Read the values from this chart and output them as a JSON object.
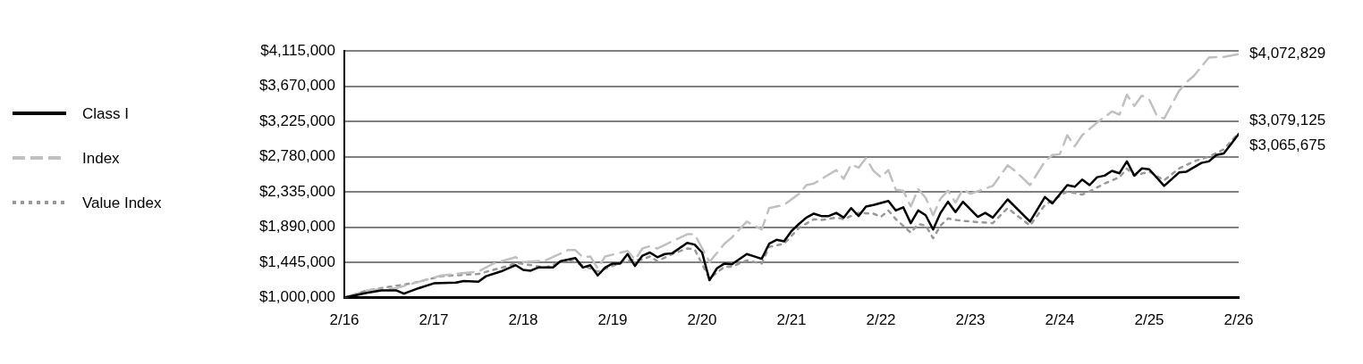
{
  "chart_data": {
    "type": "line",
    "ylim": [
      1000000,
      4115000
    ],
    "yticks": [
      {
        "value": 1000000,
        "label": "$1,000,000"
      },
      {
        "value": 1445000,
        "label": "$1,445,000"
      },
      {
        "value": 1890000,
        "label": "$1,890,000"
      },
      {
        "value": 2335000,
        "label": "$2,335,000"
      },
      {
        "value": 2780000,
        "label": "$2,780,000"
      },
      {
        "value": 3225000,
        "label": "$3,225,000"
      },
      {
        "value": 3670000,
        "label": "$3,670,000"
      },
      {
        "value": 4115000,
        "label": "$4,115,000"
      }
    ],
    "xlim": [
      "2016-02",
      "2026-02"
    ],
    "xticks": [
      {
        "value": "2016-02",
        "label": "2/16"
      },
      {
        "value": "2017-02",
        "label": "2/17"
      },
      {
        "value": "2018-02",
        "label": "2/18"
      },
      {
        "value": "2019-02",
        "label": "2/19"
      },
      {
        "value": "2020-02",
        "label": "2/20"
      },
      {
        "value": "2021-02",
        "label": "2/21"
      },
      {
        "value": "2022-02",
        "label": "2/22"
      },
      {
        "value": "2023-02",
        "label": "2/23"
      },
      {
        "value": "2024-02",
        "label": "2/24"
      },
      {
        "value": "2025-02",
        "label": "2/25"
      },
      {
        "value": "2026-02",
        "label": "2/26"
      }
    ],
    "grid": "y",
    "legend": "left",
    "marker": "none",
    "series": [
      {
        "name": "Class I",
        "color": "#000000",
        "line_style": "solid",
        "x": [
          "2016-02",
          "2016-05",
          "2016-07",
          "2016-09",
          "2016-10",
          "2016-12",
          "2017-02",
          "2017-05",
          "2017-06",
          "2017-08",
          "2017-09",
          "2017-11",
          "2018-01",
          "2018-02",
          "2018-03",
          "2018-04",
          "2018-06",
          "2018-07",
          "2018-09",
          "2018-10",
          "2018-11",
          "2018-12",
          "2019-01",
          "2019-02",
          "2019-03",
          "2019-04",
          "2019-05",
          "2019-06",
          "2019-07",
          "2019-08",
          "2019-09",
          "2019-10",
          "2019-12",
          "2020-01",
          "2020-02",
          "2020-03",
          "2020-04",
          "2020-05",
          "2020-06",
          "2020-08",
          "2020-09",
          "2020-10",
          "2020-11",
          "2020-12",
          "2021-01",
          "2021-02",
          "2021-03",
          "2021-04",
          "2021-05",
          "2021-06",
          "2021-07",
          "2021-08",
          "2021-09",
          "2021-10",
          "2021-11",
          "2021-12",
          "2022-01",
          "2022-03",
          "2022-04",
          "2022-05",
          "2022-06",
          "2022-07",
          "2022-08",
          "2022-09",
          "2022-10",
          "2022-11",
          "2022-12",
          "2023-01",
          "2023-03",
          "2023-04",
          "2023-05",
          "2023-07",
          "2023-10",
          "2023-12",
          "2024-01",
          "2024-03",
          "2024-04",
          "2024-05",
          "2024-06",
          "2024-07",
          "2024-08",
          "2024-09",
          "2024-10",
          "2024-11",
          "2024-12",
          "2025-01",
          "2025-02",
          "2025-04",
          "2025-06",
          "2025-07",
          "2025-09",
          "2025-10",
          "2025-11",
          "2025-12",
          "2026-01",
          "2026-02"
        ],
        "values": [
          1000000,
          1060000,
          1090000,
          1090000,
          1050000,
          1120000,
          1180000,
          1190000,
          1210000,
          1200000,
          1270000,
          1330000,
          1410000,
          1350000,
          1340000,
          1380000,
          1380000,
          1460000,
          1500000,
          1380000,
          1410000,
          1280000,
          1380000,
          1430000,
          1430000,
          1550000,
          1400000,
          1530000,
          1570000,
          1510000,
          1550000,
          1560000,
          1690000,
          1670000,
          1570000,
          1220000,
          1370000,
          1430000,
          1420000,
          1550000,
          1520000,
          1490000,
          1680000,
          1730000,
          1710000,
          1840000,
          1930000,
          2010000,
          2060000,
          2030000,
          2030000,
          2070000,
          2010000,
          2130000,
          2030000,
          2150000,
          2170000,
          2220000,
          2100000,
          2140000,
          1940000,
          2100000,
          2040000,
          1860000,
          2070000,
          2210000,
          2080000,
          2210000,
          2020000,
          2070000,
          2010000,
          2240000,
          1960000,
          2270000,
          2190000,
          2420000,
          2400000,
          2490000,
          2420000,
          2520000,
          2540000,
          2600000,
          2570000,
          2720000,
          2540000,
          2630000,
          2620000,
          2410000,
          2580000,
          2590000,
          2700000,
          2720000,
          2800000,
          2820000,
          2940000,
          3065675
        ]
      },
      {
        "name": "Index",
        "color": "#c0c0c0",
        "line_style": "dashed",
        "x": [
          "2016-02",
          "2016-05",
          "2016-09",
          "2016-12",
          "2017-03",
          "2017-08",
          "2017-10",
          "2018-01",
          "2018-02",
          "2018-05",
          "2018-08",
          "2018-09",
          "2018-10",
          "2018-11",
          "2018-12",
          "2019-01",
          "2019-04",
          "2019-05",
          "2019-06",
          "2019-07",
          "2019-08",
          "2019-10",
          "2019-12",
          "2020-01",
          "2020-03",
          "2020-05",
          "2020-06",
          "2020-08",
          "2020-10",
          "2020-11",
          "2021-01",
          "2021-03",
          "2021-04",
          "2021-05",
          "2021-08",
          "2021-09",
          "2021-10",
          "2021-11",
          "2021-12",
          "2022-01",
          "2022-02",
          "2022-03",
          "2022-04",
          "2022-05",
          "2022-06",
          "2022-07",
          "2022-08",
          "2022-09",
          "2022-10",
          "2022-11",
          "2022-12",
          "2023-01",
          "2023-02",
          "2023-05",
          "2023-07",
          "2023-08",
          "2023-10",
          "2023-12",
          "2024-01",
          "2024-02",
          "2024-03",
          "2024-04",
          "2024-05",
          "2024-07",
          "2024-09",
          "2024-10",
          "2024-11",
          "2024-12",
          "2025-01",
          "2025-02",
          "2025-03",
          "2025-04",
          "2025-06",
          "2025-07",
          "2025-08",
          "2025-10",
          "2025-12",
          "2026-02"
        ],
        "values": [
          1000000,
          1090000,
          1120000,
          1200000,
          1280000,
          1330000,
          1430000,
          1510000,
          1450000,
          1470000,
          1600000,
          1600000,
          1510000,
          1520000,
          1370000,
          1520000,
          1590000,
          1480000,
          1620000,
          1650000,
          1620000,
          1710000,
          1800000,
          1800000,
          1450000,
          1680000,
          1760000,
          1960000,
          1860000,
          2130000,
          2170000,
          2310000,
          2420000,
          2440000,
          2610000,
          2500000,
          2680000,
          2640000,
          2760000,
          2600000,
          2520000,
          2610000,
          2360000,
          2350000,
          2150000,
          2370000,
          2260000,
          2040000,
          2250000,
          2350000,
          2200000,
          2370000,
          2310000,
          2410000,
          2670000,
          2600000,
          2420000,
          2720000,
          2800000,
          2810000,
          3050000,
          2910000,
          3050000,
          3210000,
          3350000,
          3310000,
          3560000,
          3420000,
          3550000,
          3500000,
          3300000,
          3260000,
          3610000,
          3720000,
          3800000,
          4030000,
          4040000,
          4072829
        ]
      },
      {
        "name": "Value Index",
        "color": "#999999",
        "line_style": "dotted",
        "x": [
          "2016-02",
          "2016-05",
          "2016-11",
          "2017-03",
          "2017-08",
          "2017-12",
          "2018-01",
          "2018-05",
          "2018-08",
          "2018-12",
          "2019-04",
          "2019-06",
          "2019-07",
          "2019-08",
          "2019-10",
          "2019-12",
          "2020-01",
          "2020-03",
          "2020-05",
          "2020-06",
          "2020-08",
          "2020-10",
          "2020-11",
          "2021-01",
          "2021-03",
          "2021-05",
          "2021-06",
          "2021-08",
          "2021-09",
          "2021-11",
          "2022-01",
          "2022-02",
          "2022-03",
          "2022-04",
          "2022-06",
          "2022-07",
          "2022-08",
          "2022-09",
          "2022-10",
          "2022-11",
          "2022-12",
          "2023-02",
          "2023-05",
          "2023-07",
          "2023-10",
          "2023-12",
          "2024-03",
          "2024-05",
          "2024-06",
          "2024-08",
          "2024-10",
          "2024-11",
          "2024-12",
          "2025-02",
          "2025-04",
          "2025-06",
          "2025-08",
          "2025-10",
          "2025-12",
          "2026-02"
        ],
        "values": [
          1000000,
          1090000,
          1180000,
          1270000,
          1300000,
          1400000,
          1440000,
          1380000,
          1480000,
          1330000,
          1470000,
          1480000,
          1520000,
          1460000,
          1550000,
          1620000,
          1610000,
          1240000,
          1390000,
          1390000,
          1470000,
          1430000,
          1640000,
          1680000,
          1880000,
          1990000,
          1980000,
          2010000,
          1990000,
          2070000,
          2060000,
          2020000,
          2100000,
          1990000,
          1820000,
          1930000,
          1910000,
          1750000,
          1910000,
          2000000,
          1980000,
          1960000,
          1940000,
          2130000,
          1910000,
          2170000,
          2340000,
          2300000,
          2340000,
          2440000,
          2520000,
          2630000,
          2540000,
          2590000,
          2480000,
          2630000,
          2720000,
          2780000,
          2870000,
          3079125
        ]
      }
    ],
    "annotations": [
      {
        "text": "$4,072,829",
        "x": "2026-02",
        "y": 4072829
      },
      {
        "text": "$3,079,125",
        "x": "2026-02",
        "y": 3079125
      },
      {
        "text": "$3,065,675",
        "x": "2026-02",
        "y": 3065675
      }
    ]
  }
}
